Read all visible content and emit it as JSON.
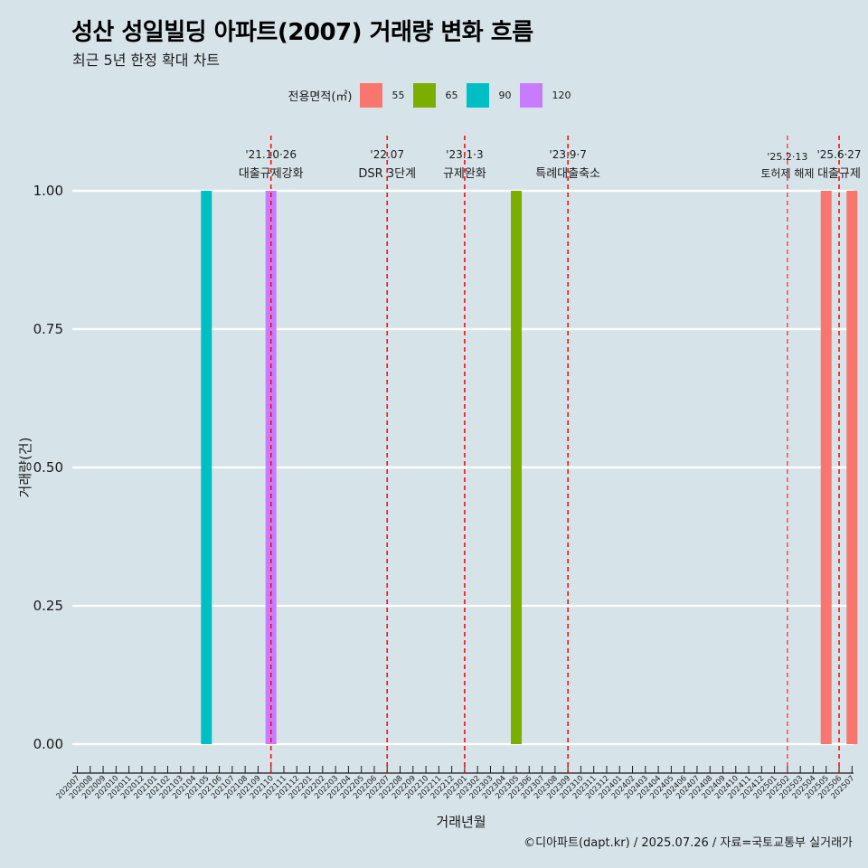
{
  "chart_data": {
    "type": "bar",
    "title": "성산 성일빌딩 아파트(2007) 거래량 변화 흐름",
    "subtitle": "최근 5년 한정 확대 차트",
    "xlabel": "거래년월",
    "ylabel": "거래량(건)",
    "ylim": [
      0,
      1
    ],
    "yticks": [
      "0.00",
      "0.25",
      "0.50",
      "0.75",
      "1.00"
    ],
    "legend_title": "전용면적(㎡)",
    "legend_position": "top",
    "grid": true,
    "categories": [
      "202007",
      "202008",
      "202009",
      "202010",
      "202011",
      "202012",
      "202101",
      "202102",
      "202103",
      "202104",
      "202105",
      "202106",
      "202107",
      "202108",
      "202109",
      "202110",
      "202111",
      "202112",
      "202201",
      "202202",
      "202203",
      "202204",
      "202205",
      "202206",
      "202207",
      "202208",
      "202209",
      "202210",
      "202211",
      "202212",
      "202301",
      "202302",
      "202303",
      "202304",
      "202305",
      "202306",
      "202307",
      "202308",
      "202309",
      "202310",
      "202311",
      "202312",
      "202401",
      "202402",
      "202403",
      "202404",
      "202405",
      "202406",
      "202407",
      "202408",
      "202409",
      "202410",
      "202411",
      "202412",
      "202501",
      "202502",
      "202503",
      "202504",
      "202505",
      "202506",
      "202507"
    ],
    "series": [
      {
        "name": "55",
        "color": "#f8766d",
        "points": [
          {
            "x": "202505",
            "y": 1
          },
          {
            "x": "202507",
            "y": 1
          }
        ]
      },
      {
        "name": "65",
        "color": "#7cae00",
        "points": [
          {
            "x": "202305",
            "y": 1
          }
        ]
      },
      {
        "name": "90",
        "color": "#00bfc4",
        "points": [
          {
            "x": "202105",
            "y": 1
          }
        ]
      },
      {
        "name": "120",
        "color": "#c77cff",
        "points": [
          {
            "x": "202110",
            "y": 1
          }
        ]
      }
    ],
    "events": [
      {
        "x": "202110",
        "date": "'21.10·26",
        "label": "대출규제강화"
      },
      {
        "x": "202207",
        "date": "'22.07",
        "label": "DSR 3단계"
      },
      {
        "x": "202301",
        "date": "'23.1·3",
        "label": "규제완화"
      },
      {
        "x": "202309",
        "date": "'23.9·7",
        "label": "특례대출축소"
      },
      {
        "x": "202502",
        "date": "'25.2·13",
        "label": "토허제 해제"
      },
      {
        "x": "202506",
        "date": "'25.6·27",
        "label": "대출규제"
      }
    ],
    "event_line_color": "#ff0000"
  },
  "caption": "©디아파트(dapt.kr) / 2025.07.26 / 자료=국토교통부 실거래가"
}
